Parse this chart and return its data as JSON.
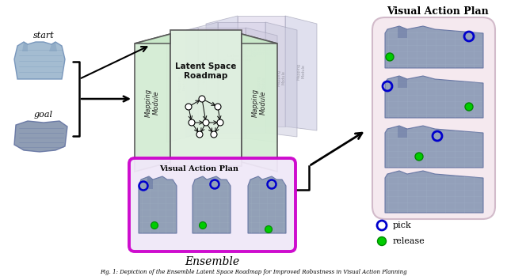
{
  "bg_color": "#ffffff",
  "figure_title": "Visual Action Plan",
  "ensemble_label": "Ensemble",
  "caption": "Fig. 1: Depiction of the Ensemble Latent Space Roadmap for Improved Robustness in Visual Action Planning",
  "legend_pick": "pick",
  "legend_release": "release",
  "pick_color": "#0000cc",
  "release_color": "#00cc00",
  "mapping_module_text": "Mapping\nModule",
  "latent_space_text": "Latent Space\nRoadmap",
  "visual_action_plan_text": "Visual Action Plan",
  "main_green": "#d8edd8",
  "main_green_dark": "#c0ddc0",
  "purple_edge": "#cc00cc",
  "ghost_blue": "#c0c8e0",
  "ghost_pink": "#e0c8d8",
  "ghost_green": "#c8d8c8"
}
